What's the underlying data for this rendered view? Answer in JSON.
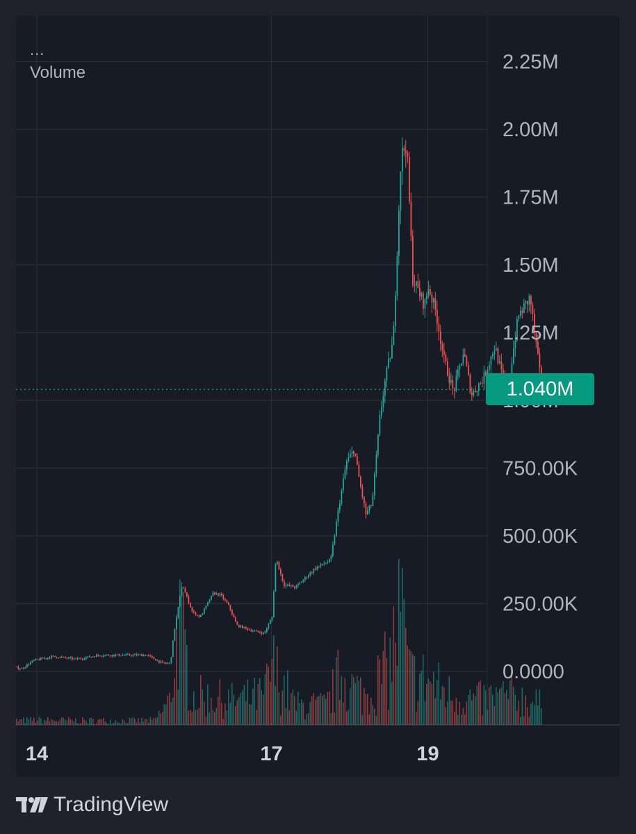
{
  "legend": {
    "more": "...",
    "label": "Volume"
  },
  "price_badge": {
    "value": "1.040M",
    "color": "#089981"
  },
  "footer": {
    "brand": "TradingView",
    "logo_icon": "tradingview-logo-icon"
  },
  "colors": {
    "up": "#26a69a",
    "down": "#ef5350",
    "grid": "#2a2e39",
    "axis_text": "#b2b5be",
    "background": "#171b25"
  },
  "chart_data": {
    "type": "candlestick",
    "title": "",
    "ylabel": "",
    "xlabel": "",
    "y_ticks": [
      "2.25M",
      "2.00M",
      "1.75M",
      "1.50M",
      "1.25M",
      "1.00M",
      "750.00K",
      "500.00K",
      "250.00K",
      "0.0000"
    ],
    "y_tick_values": [
      2250000,
      2000000,
      1750000,
      1500000,
      1250000,
      1000000,
      750000,
      500000,
      250000,
      0
    ],
    "ylim": [
      -200000,
      2350000
    ],
    "x_ticks": [
      "14",
      "17",
      "19"
    ],
    "x_tick_days": [
      14,
      17,
      19
    ],
    "xlim": [
      13.6,
      21
    ],
    "grid": true,
    "last_value": 1040000,
    "price_path": [
      [
        13.6,
        20000
      ],
      [
        13.8,
        10000
      ],
      [
        13.95,
        40000
      ],
      [
        14.2,
        55000
      ],
      [
        14.5,
        45000
      ],
      [
        14.8,
        60000
      ],
      [
        15.1,
        60000
      ],
      [
        15.4,
        60000
      ],
      [
        15.6,
        30000
      ],
      [
        15.7,
        30000
      ],
      [
        15.75,
        150000
      ],
      [
        15.85,
        320000
      ],
      [
        15.98,
        220000
      ],
      [
        16.08,
        200000
      ],
      [
        16.25,
        290000
      ],
      [
        16.35,
        280000
      ],
      [
        16.45,
        240000
      ],
      [
        16.55,
        170000
      ],
      [
        16.75,
        150000
      ],
      [
        16.9,
        140000
      ],
      [
        17.0,
        200000
      ],
      [
        17.05,
        420000
      ],
      [
        17.15,
        320000
      ],
      [
        17.3,
        310000
      ],
      [
        17.55,
        380000
      ],
      [
        17.75,
        410000
      ],
      [
        17.85,
        600000
      ],
      [
        17.95,
        770000
      ],
      [
        18.05,
        820000
      ],
      [
        18.12,
        700000
      ],
      [
        18.2,
        580000
      ],
      [
        18.28,
        620000
      ],
      [
        18.38,
        940000
      ],
      [
        18.45,
        1080000
      ],
      [
        18.55,
        1220000
      ],
      [
        18.65,
        1900000
      ],
      [
        18.72,
        1950000
      ],
      [
        18.8,
        1450000
      ],
      [
        18.95,
        1350000
      ],
      [
        19.0,
        1420000
      ],
      [
        19.1,
        1320000
      ],
      [
        19.2,
        1150000
      ],
      [
        19.32,
        1030000
      ],
      [
        19.45,
        1180000
      ],
      [
        19.55,
        1020000
      ],
      [
        19.7,
        1080000
      ],
      [
        19.85,
        1200000
      ],
      [
        20.0,
        1020000
      ],
      [
        20.15,
        1310000
      ],
      [
        20.3,
        1380000
      ],
      [
        20.45,
        1040000
      ]
    ],
    "volume_series": [
      [
        13.6,
        8000
      ],
      [
        14.0,
        10000
      ],
      [
        14.5,
        9000
      ],
      [
        15.0,
        9000
      ],
      [
        15.5,
        9000
      ],
      [
        15.7,
        50000
      ],
      [
        15.8,
        220000
      ],
      [
        15.9,
        130000
      ],
      [
        16.0,
        60000
      ],
      [
        16.5,
        50000
      ],
      [
        16.9,
        60000
      ],
      [
        17.0,
        120000
      ],
      [
        17.3,
        40000
      ],
      [
        17.7,
        40000
      ],
      [
        17.9,
        110000
      ],
      [
        18.0,
        80000
      ],
      [
        18.2,
        60000
      ],
      [
        18.5,
        120000
      ],
      [
        18.65,
        240000
      ],
      [
        18.75,
        100000
      ],
      [
        19.0,
        90000
      ],
      [
        19.3,
        60000
      ],
      [
        19.6,
        50000
      ],
      [
        20.0,
        60000
      ],
      [
        20.3,
        50000
      ],
      [
        20.45,
        40000
      ]
    ],
    "max_volume": 260000
  }
}
